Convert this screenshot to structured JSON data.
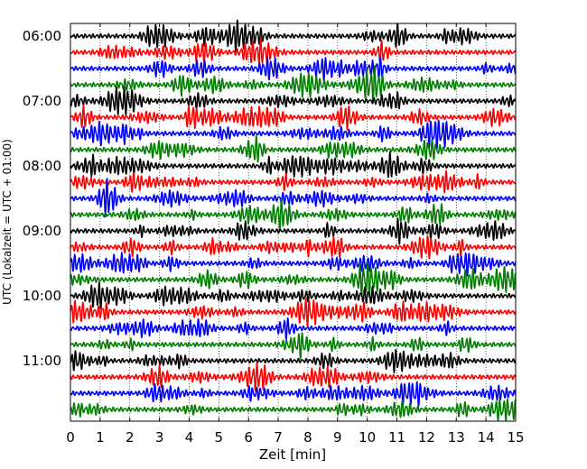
{
  "chart_data": {
    "type": "line",
    "xlabel": "Zeit  [min]",
    "ylabel": "UTC (Lokalzeit = UTC + 01:00)",
    "xlim": [
      0,
      15
    ],
    "x_ticks": [
      0,
      1,
      2,
      3,
      4,
      5,
      6,
      7,
      8,
      9,
      10,
      11,
      12,
      13,
      14,
      15
    ],
    "y_tick_labels": [
      "06:00",
      "07:00",
      "08:00",
      "09:00",
      "10:00",
      "11:00"
    ],
    "rows_per_hour": 4,
    "row_minutes": 15,
    "start_time": "06:00",
    "trace_count": 24,
    "trace_colors": [
      "#000000",
      "#ff0000",
      "#0000ff",
      "#007f00"
    ],
    "grid": true
  }
}
